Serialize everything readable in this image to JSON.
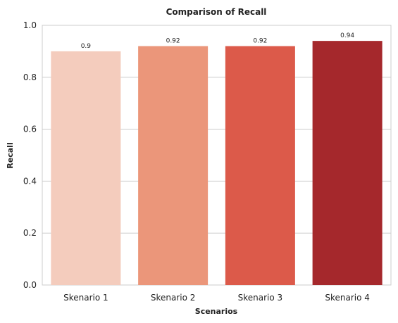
{
  "chart_data": {
    "type": "bar",
    "title": "Comparison of Recall",
    "xlabel": "Scenarios",
    "ylabel": "Recall",
    "categories": [
      "Skenario 1",
      "Skenario 2",
      "Skenario 3",
      "Skenario 4"
    ],
    "values": [
      0.9,
      0.92,
      0.92,
      0.94
    ],
    "data_labels": [
      "0.9",
      "0.92",
      "0.92",
      "0.94"
    ],
    "colors": [
      "#f4ccbd",
      "#eb967a",
      "#dc5a4a",
      "#a5282c"
    ],
    "ylim": [
      0,
      1.0
    ],
    "yticks": [
      0.0,
      0.2,
      0.4,
      0.6,
      0.8,
      1.0
    ],
    "ytick_labels": [
      "0.0",
      "0.2",
      "0.4",
      "0.6",
      "0.8",
      "1.0"
    ],
    "grid": "horizontal",
    "legend": "none"
  }
}
